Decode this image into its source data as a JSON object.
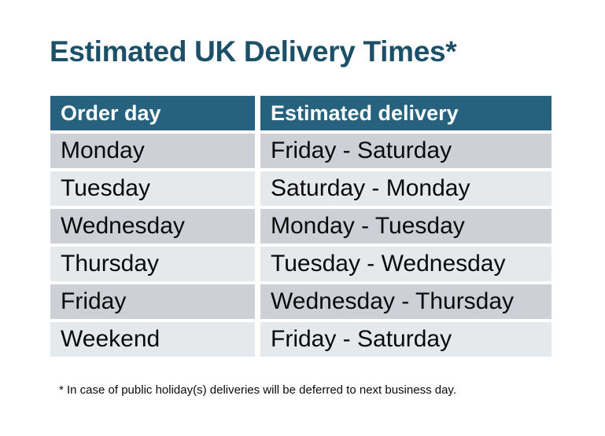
{
  "title": "Estimated UK Delivery Times*",
  "table": {
    "headers": [
      "Order day",
      "Estimated delivery"
    ],
    "rows": [
      {
        "order_day": "Monday",
        "estimated_delivery": "Friday - Saturday"
      },
      {
        "order_day": "Tuesday",
        "estimated_delivery": "Saturday - Monday"
      },
      {
        "order_day": "Wednesday",
        "estimated_delivery": "Monday - Tuesday"
      },
      {
        "order_day": "Thursday",
        "estimated_delivery": "Tuesday - Wednesday"
      },
      {
        "order_day": "Friday",
        "estimated_delivery": "Wednesday - Thursday"
      },
      {
        "order_day": "Weekend",
        "estimated_delivery": "Friday - Saturday"
      }
    ]
  },
  "footnote": "* In case of public holiday(s) deliveries will be deferred to next business day.",
  "colors": {
    "title": "#1c5068",
    "header_bg": "#26617e",
    "header_text": "#ffffff",
    "row_dark": "#cdd1d7",
    "row_light": "#e6e9ec",
    "body_text": "#0a0a0a"
  }
}
